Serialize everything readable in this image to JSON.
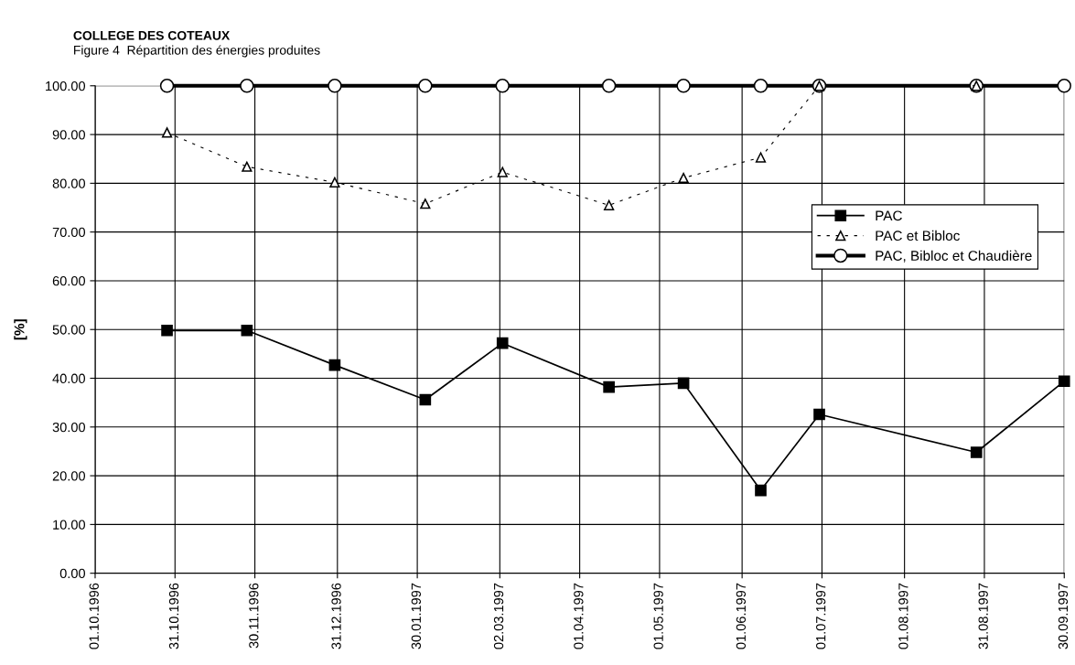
{
  "chart_data": {
    "type": "line",
    "title": "COLLEGE DES COTEAUX",
    "subtitle": "Figure 4  Répartition des énergies produites",
    "ylabel": "[%]",
    "x": [
      "1996-10-28",
      "1996-11-27",
      "1996-12-30",
      "1997-02-02",
      "1997-03-03",
      "1997-04-12",
      "1997-05-10",
      "1997-06-08",
      "1997-06-30",
      "1997-08-28",
      "1997-09-30"
    ],
    "series": [
      {
        "name": "PAC",
        "color": "#000000",
        "marker": "square",
        "line_style": "solid",
        "values": [
          49.8,
          49.8,
          42.7,
          35.6,
          47.2,
          38.2,
          39.0,
          17.0,
          32.6,
          24.8,
          39.4
        ]
      },
      {
        "name": "PAC et Bibloc",
        "color": "#000000",
        "marker": "triangle",
        "line_style": "dashed",
        "values": [
          90.4,
          83.4,
          80.2,
          75.8,
          82.3,
          75.5,
          81.1,
          85.3,
          100,
          100,
          null
        ]
      },
      {
        "name": "PAC, Bibloc et Chaudière",
        "color": "#000000",
        "marker": "circle",
        "line_style": "solid",
        "values": [
          100,
          100,
          100,
          100,
          100,
          100,
          100,
          100,
          100,
          100,
          100
        ]
      }
    ],
    "xlim": [
      "1996-10-01",
      "1997-09-30"
    ],
    "xticks": [
      {
        "value": "1996-10-01",
        "label": "01.10.1996"
      },
      {
        "value": "1996-10-31",
        "label": "31.10.1996"
      },
      {
        "value": "1996-11-30",
        "label": "30.11.1996"
      },
      {
        "value": "1996-12-31",
        "label": "31.12.1996"
      },
      {
        "value": "1997-01-30",
        "label": "30.01.1997"
      },
      {
        "value": "1997-03-02",
        "label": "02.03.1997"
      },
      {
        "value": "1997-04-01",
        "label": "01.04.1997"
      },
      {
        "value": "1997-05-01",
        "label": "01.05.1997"
      },
      {
        "value": "1997-06-01",
        "label": "01.06.1997"
      },
      {
        "value": "1997-07-01",
        "label": "01.07.1997"
      },
      {
        "value": "1997-08-01",
        "label": "01.08.1997"
      },
      {
        "value": "1997-08-31",
        "label": "31.08.1997"
      },
      {
        "value": "1997-09-30",
        "label": "30.09.1997"
      }
    ],
    "ylim": [
      0,
      100
    ],
    "yticks": [
      {
        "value": 0,
        "label": "0.00"
      },
      {
        "value": 10,
        "label": "10.00"
      },
      {
        "value": 20,
        "label": "20.00"
      },
      {
        "value": 30,
        "label": "30.00"
      },
      {
        "value": 40,
        "label": "40.00"
      },
      {
        "value": 50,
        "label": "50.00"
      },
      {
        "value": 60,
        "label": "60.00"
      },
      {
        "value": 70,
        "label": "70.00"
      },
      {
        "value": 80,
        "label": "80.00"
      },
      {
        "value": 90,
        "label": "90.00"
      },
      {
        "value": 100,
        "label": "100.00"
      }
    ],
    "grid": true,
    "legend": "right"
  }
}
